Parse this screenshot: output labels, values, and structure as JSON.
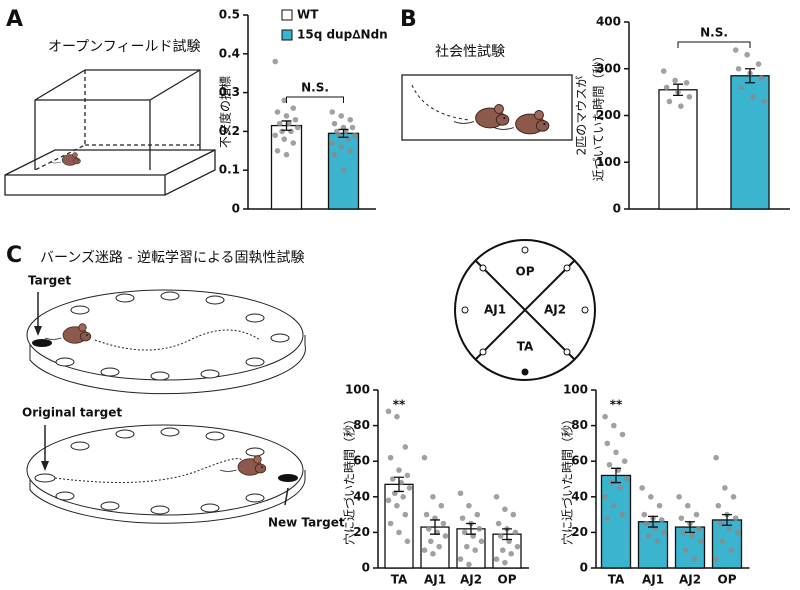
{
  "panels": [
    {
      "label": "A",
      "title": "オープンフィールド試験"
    },
    {
      "label": "B",
      "title": "社会性試験"
    },
    {
      "label": "C",
      "title": "バーンズ迷路 - 逆転学習による固執性試験",
      "illustration_labels": [
        "Target",
        "Original target",
        "New Target"
      ],
      "maze_quadrants": [
        "OP",
        "AJ1",
        "AJ2",
        "TA"
      ]
    }
  ],
  "chart_data": [
    {
      "type": "bar",
      "y_label": "不安度の指標",
      "categories": [
        null
      ],
      "series": [
        {
          "name": "WT",
          "color": "#ffffff",
          "values": [
            0.215
          ],
          "errors": [
            0.012
          ],
          "points": [
            [
              0.38,
              0.28,
              0.26,
              0.25,
              0.24,
              0.23,
              0.22,
              0.22,
              0.21,
              0.2,
              0.2,
              0.19,
              0.18,
              0.17,
              0.15,
              0.14
            ]
          ]
        },
        {
          "name": "15q dup∆Ndn",
          "color": "#3bb5cf",
          "values": [
            0.195
          ],
          "errors": [
            0.01
          ],
          "points": [
            [
              0.25,
              0.24,
              0.23,
              0.22,
              0.21,
              0.21,
              0.2,
              0.2,
              0.19,
              0.19,
              0.18,
              0.17,
              0.16,
              0.15,
              0.14,
              0.1
            ]
          ]
        }
      ],
      "ylim": [
        0,
        0.5
      ],
      "yticks": [
        0,
        0.1,
        0.2,
        0.3,
        0.4,
        0.5
      ],
      "legend": "top",
      "annotation": "N.S."
    },
    {
      "type": "bar",
      "y_label": [
        "2匹のマウスが",
        "近づいていた時間（秒）"
      ],
      "categories": [
        null
      ],
      "series": [
        {
          "color": "#ffffff",
          "values": [
            255
          ],
          "errors": [
            12
          ],
          "points": [
            [
              295,
              275,
              270,
              260,
              250,
              240,
              230,
              220
            ]
          ]
        },
        {
          "color": "#3bb5cf",
          "values": [
            285
          ],
          "errors": [
            15
          ],
          "points": [
            [
              340,
              330,
              310,
              300,
              290,
              280,
              260,
              240,
              230
            ]
          ]
        }
      ],
      "ylim": [
        0,
        400
      ],
      "yticks": [
        0,
        100,
        200,
        300,
        400
      ],
      "annotation": "N.S."
    },
    {
      "type": "bar",
      "y_label": "穴に近づいた時間（秒）",
      "categories": [
        "TA",
        "AJ1",
        "AJ2",
        "OP"
      ],
      "series": [
        {
          "color": "#ffffff",
          "values": [
            47,
            23,
            22,
            19
          ],
          "errors": [
            4,
            4,
            3,
            3
          ],
          "points": [
            [
              88,
              85,
              68,
              62,
              55,
              52,
              50,
              48,
              45,
              42,
              40,
              38,
              35,
              30,
              25,
              20,
              15
            ],
            [
              62,
              40,
              35,
              30,
              28,
              25,
              22,
              20,
              18,
              15,
              12,
              10,
              8
            ],
            [
              42,
              35,
              30,
              28,
              25,
              22,
              20,
              18,
              15,
              12,
              10,
              5,
              2
            ],
            [
              40,
              33,
              30,
              25,
              22,
              20,
              18,
              15,
              12,
              10,
              8,
              5,
              3
            ]
          ]
        }
      ],
      "ylim": [
        0,
        100
      ],
      "yticks": [
        0,
        20,
        40,
        60,
        80,
        100
      ],
      "annotation": "**"
    },
    {
      "type": "bar",
      "y_label": "穴に近づいた時間（秒）",
      "categories": [
        "TA",
        "AJ1",
        "AJ2",
        "OP"
      ],
      "series": [
        {
          "color": "#3bb5cf",
          "values": [
            52,
            26,
            23,
            27
          ],
          "errors": [
            4,
            3,
            3,
            3
          ],
          "points": [
            [
              85,
              80,
              75,
              70,
              65,
              60,
              58,
              55,
              50,
              48,
              45,
              40,
              35,
              30,
              28
            ],
            [
              45,
              40,
              35,
              30,
              28,
              27,
              25,
              22,
              20,
              18,
              15
            ],
            [
              40,
              35,
              30,
              28,
              25,
              22,
              20,
              18,
              15,
              10,
              5
            ],
            [
              62,
              45,
              40,
              35,
              30,
              28,
              25,
              22,
              20,
              15,
              10,
              5
            ]
          ]
        }
      ],
      "ylim": [
        0,
        100
      ],
      "yticks": [
        0,
        20,
        40,
        60,
        80,
        100
      ],
      "annotation": "**"
    }
  ]
}
